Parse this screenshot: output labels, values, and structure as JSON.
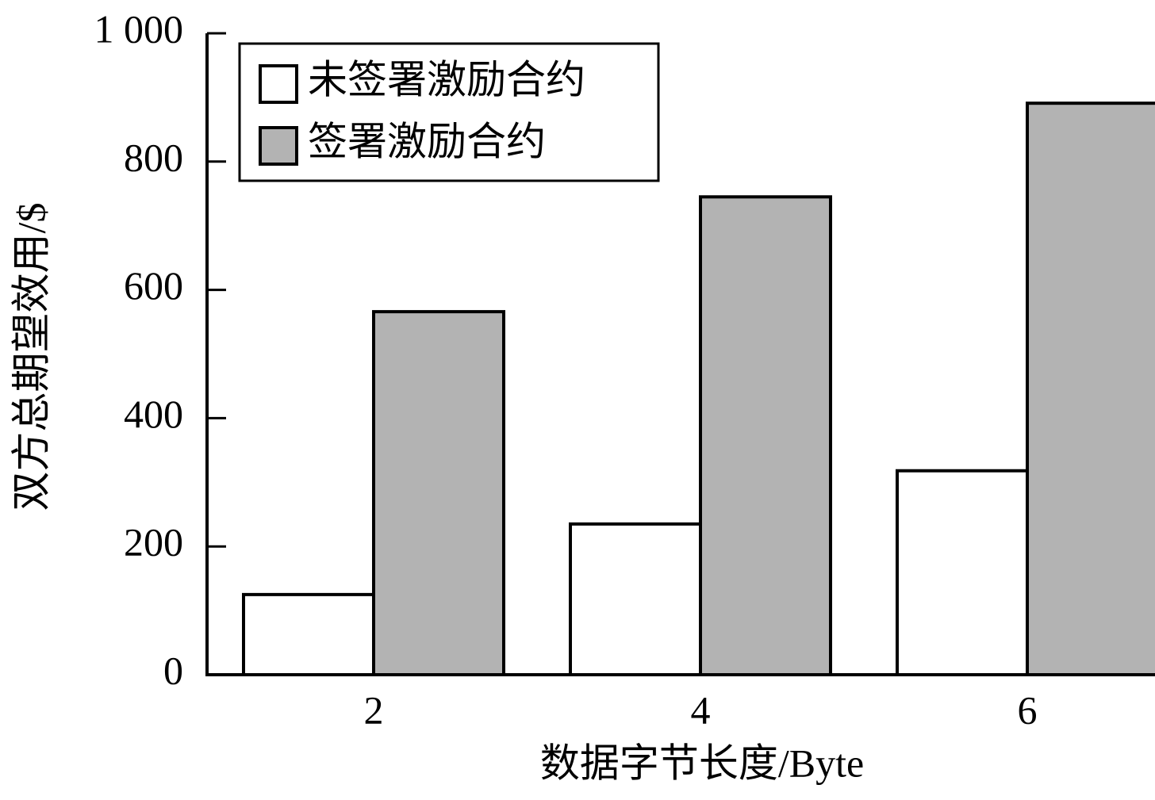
{
  "chart_data": {
    "type": "bar",
    "x_label": "数据字节长度/Byte",
    "y_label": "双方总期望效用/$",
    "categories": [
      "2",
      "4",
      "6"
    ],
    "series": [
      {
        "name": "未签署激励合约",
        "color": "#ffffff",
        "values": [
          125,
          235,
          318
        ]
      },
      {
        "name": "签署激励合约",
        "color": "#b3b3b3",
        "values": [
          566,
          745,
          891
        ]
      }
    ],
    "ylim": [
      0,
      1000
    ],
    "yticks": [
      0,
      200,
      400,
      600,
      800,
      {
        "value": 1000,
        "label": "1 000"
      }
    ],
    "legend": "upper left"
  }
}
